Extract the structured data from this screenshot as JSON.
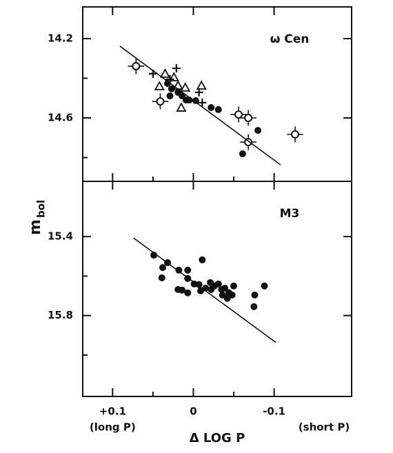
{
  "chart_data": [
    {
      "type": "scatter",
      "panel_label": "ω Cen",
      "xlim": [
        0.137,
        -0.196
      ],
      "xticks": [
        {
          "value": 0.1,
          "label": "+0.1"
        },
        0,
        -0.1
      ],
      "minor_xticks": [
        0.05,
        -0.05
      ],
      "ylim": [
        14.04,
        14.92
      ],
      "y_inverted": true,
      "yticks": [
        14.2,
        14.6
      ],
      "minor_yticks": [
        14.4,
        14.8
      ],
      "series": [
        {
          "marker": "circle-filled",
          "color": "#111111",
          "x": [
            0.032,
            0.027,
            0.019,
            0.014,
            0.009,
            0.005,
            -0.003,
            -0.022,
            -0.031,
            0.029,
            -0.061,
            -0.08
          ],
          "values": [
            14.426,
            14.454,
            14.471,
            14.489,
            14.51,
            14.51,
            14.513,
            14.548,
            14.558,
            14.489,
            14.781,
            14.663
          ]
        },
        {
          "marker": "circle-open-errorbar",
          "color": "#111111",
          "x_error": 0.01,
          "y_error": 0.04,
          "x": [
            0.071,
            0.041,
            -0.056,
            -0.068,
            -0.068,
            -0.126
          ],
          "values": [
            14.339,
            14.517,
            14.583,
            14.6,
            14.722,
            14.683
          ]
        },
        {
          "marker": "triangle-open",
          "color": "#111111",
          "x": [
            0.035,
            0.042,
            0.019,
            0.01,
            -0.01,
            0.015,
            0.024
          ],
          "values": [
            14.377,
            14.44,
            14.437,
            14.447,
            14.437,
            14.548,
            14.395
          ]
        },
        {
          "marker": "plus",
          "color": "#111111",
          "x": [
            0.05,
            0.021,
            0.029,
            -0.007,
            -0.011
          ],
          "values": [
            14.377,
            14.35,
            14.405,
            14.471,
            14.523
          ]
        },
        {
          "marker": "line",
          "color": "#111111",
          "x": [
            0.091,
            -0.108
          ],
          "values": [
            14.238,
            14.837
          ]
        }
      ]
    },
    {
      "type": "scatter",
      "panel_label": "M3",
      "x_label": "Δ LOG P",
      "y_label": "m",
      "y_label_sub": "bol",
      "x_annotations": [
        "(long P)",
        "(short P)"
      ],
      "xlim": [
        0.137,
        -0.196
      ],
      "xticks": [
        {
          "value": 0.1,
          "label": "+0.1"
        },
        0,
        -0.1
      ],
      "minor_xticks": [
        0.05,
        -0.05
      ],
      "ylim": [
        15.12,
        16.21
      ],
      "y_inverted": true,
      "yticks": [
        15.4,
        15.8
      ],
      "minor_yticks": [
        15.6,
        16.0
      ],
      "series": [
        {
          "marker": "circle-filled",
          "color": "#111111",
          "x": [
            0.049,
            0.038,
            0.032,
            0.039,
            0.018,
            0.007,
            0.007,
            0.019,
            0.014,
            0.007,
            -0.001,
            -0.007,
            -0.011,
            -0.009,
            -0.015,
            -0.021,
            -0.022,
            -0.026,
            -0.031,
            -0.035,
            -0.039,
            -0.036,
            -0.044,
            -0.048,
            -0.042,
            -0.05,
            -0.076,
            -0.088,
            -0.075
          ],
          "values": [
            15.494,
            15.557,
            15.532,
            15.609,
            15.57,
            15.57,
            15.612,
            15.668,
            15.671,
            15.685,
            15.64,
            15.643,
            15.518,
            15.675,
            15.661,
            15.633,
            15.668,
            15.65,
            15.64,
            15.668,
            15.661,
            15.696,
            15.685,
            15.696,
            15.713,
            15.65,
            15.696,
            15.65,
            15.755
          ]
        },
        {
          "marker": "line",
          "color": "#111111",
          "x": [
            0.074,
            -0.102
          ],
          "values": [
            15.407,
            15.936
          ]
        }
      ]
    }
  ]
}
